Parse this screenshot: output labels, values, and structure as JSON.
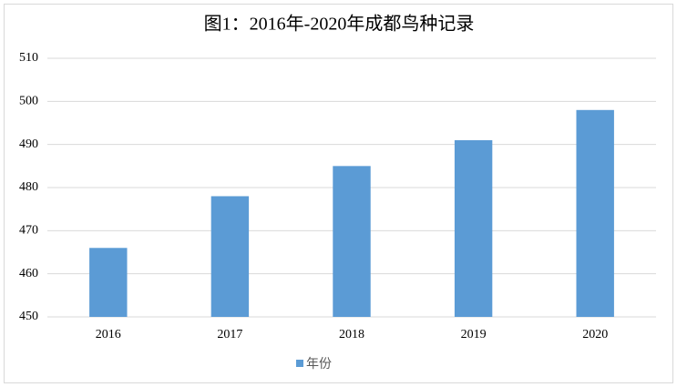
{
  "chart_data": {
    "type": "bar",
    "title": "图1：2016年-2020年成都鸟种记录",
    "categories": [
      "2016",
      "2017",
      "2018",
      "2019",
      "2020"
    ],
    "series": [
      {
        "name": "年份",
        "color": "#5b9bd5",
        "values": [
          466,
          478,
          485,
          491,
          498
        ]
      }
    ],
    "ylim": [
      450,
      510
    ],
    "yticks": [
      450,
      460,
      470,
      480,
      490,
      500,
      510
    ],
    "grid": true,
    "legend": "bottom"
  }
}
